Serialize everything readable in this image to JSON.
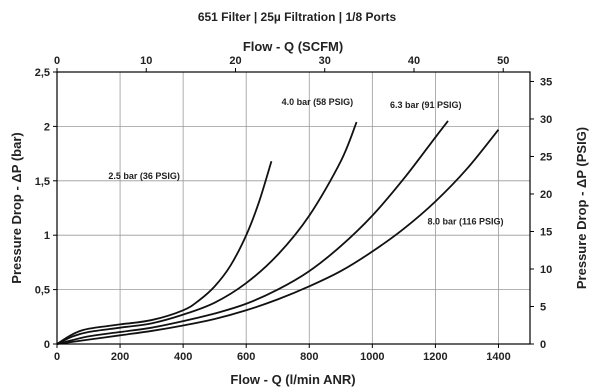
{
  "chart_data": {
    "type": "line",
    "title": "651 Filter | 25µ Filtration | 1/8 Ports",
    "xlabel": "Flow - Q (l/min ANR)",
    "ylabel": "Pressure Drop - ΔP (bar)",
    "x2label": "Flow - Q (SCFM)",
    "y2label": "Pressure Drop - ΔP (PSIG)",
    "xlim": [
      0,
      1500
    ],
    "ylim": [
      0,
      2.5
    ],
    "x2lim": [
      0,
      53
    ],
    "y2lim": [
      0,
      36.26
    ],
    "xticks": [
      "0",
      "200",
      "400",
      "600",
      "800",
      "1000",
      "1200",
      "1400"
    ],
    "yticks": [
      "0",
      "0,5",
      "1",
      "1,5",
      "2",
      "2,5"
    ],
    "x2ticks": [
      "0",
      "10",
      "20",
      "30",
      "40",
      "50"
    ],
    "y2ticks": [
      "0",
      "5",
      "10",
      "15",
      "20",
      "25",
      "30",
      "35"
    ],
    "grid": true,
    "series": [
      {
        "name": "2.5 bar (36 PSIG)",
        "x": [
          0,
          50,
          100,
          200,
          300,
          400,
          450,
          500,
          550,
          600,
          640,
          680
        ],
        "y": [
          0,
          0.09,
          0.14,
          0.18,
          0.22,
          0.31,
          0.4,
          0.53,
          0.72,
          1.0,
          1.3,
          1.68
        ]
      },
      {
        "name": "4.0 bar (58 PSIG)",
        "x": [
          0,
          50,
          100,
          200,
          300,
          400,
          500,
          600,
          700,
          800,
          900,
          950
        ],
        "y": [
          0,
          0.07,
          0.11,
          0.15,
          0.19,
          0.27,
          0.38,
          0.56,
          0.82,
          1.18,
          1.68,
          2.04
        ]
      },
      {
        "name": "6.3 bar (91 PSIG)",
        "x": [
          0,
          100,
          200,
          300,
          400,
          500,
          600,
          700,
          800,
          900,
          1000,
          1100,
          1200,
          1240
        ],
        "y": [
          0,
          0.07,
          0.11,
          0.15,
          0.21,
          0.28,
          0.37,
          0.5,
          0.67,
          0.9,
          1.18,
          1.52,
          1.9,
          2.05
        ]
      },
      {
        "name": "8.0 bar (116 PSIG)",
        "x": [
          0,
          100,
          200,
          300,
          400,
          500,
          600,
          700,
          800,
          900,
          1000,
          1100,
          1200,
          1300,
          1400
        ],
        "y": [
          0,
          0.04,
          0.08,
          0.12,
          0.17,
          0.23,
          0.31,
          0.41,
          0.53,
          0.67,
          0.85,
          1.06,
          1.31,
          1.61,
          1.97
        ]
      }
    ]
  }
}
